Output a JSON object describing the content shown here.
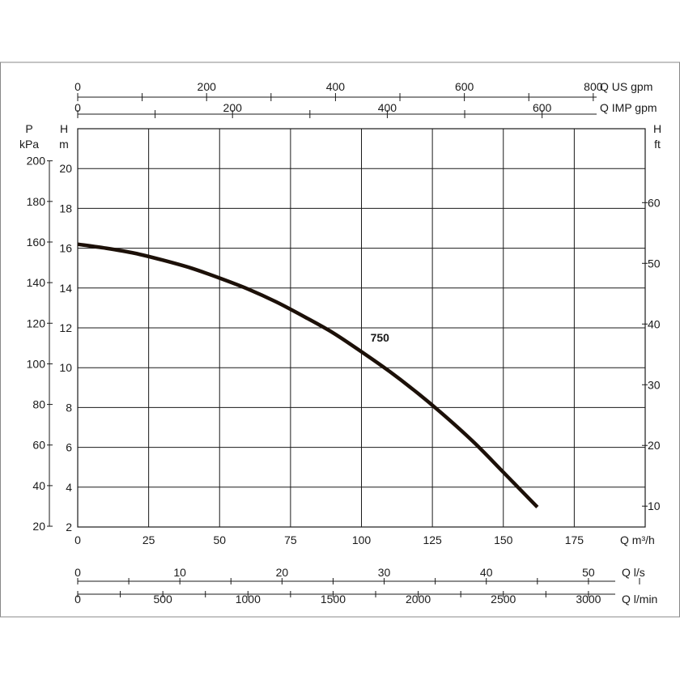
{
  "chart_data": {
    "type": "line",
    "series": [
      {
        "name": "750",
        "x": [
          0,
          10,
          20,
          30,
          40,
          50,
          60,
          70,
          80,
          90,
          100,
          110,
          120,
          130,
          140,
          150,
          162
        ],
        "y": [
          16.2,
          16.0,
          15.75,
          15.4,
          15.0,
          14.5,
          13.95,
          13.3,
          12.55,
          11.75,
          10.8,
          9.8,
          8.7,
          7.5,
          6.2,
          4.75,
          3.0
        ]
      }
    ],
    "axes": {
      "x_flow_m3h": {
        "label": "Q m³/h",
        "ticks": [
          "0",
          "25",
          "50",
          "75",
          "100",
          "125",
          "150",
          "175"
        ],
        "range": [
          0,
          200
        ]
      },
      "x_flow_ls": {
        "label": "Q l/s",
        "ticks": [
          "0",
          "10",
          "20",
          "30",
          "40",
          "50"
        ]
      },
      "x_flow_lmin": {
        "label": "Q l/min",
        "ticks": [
          "0",
          "500",
          "1000",
          "1500",
          "2000",
          "2500",
          "3000"
        ]
      },
      "x_flow_us_gpm": {
        "label": "Q US gpm",
        "ticks": [
          "0",
          "200",
          "400",
          "600",
          "800"
        ]
      },
      "x_flow_imp_gpm": {
        "label": "Q IMP gpm",
        "ticks": [
          "0",
          "200",
          "400",
          "600"
        ]
      },
      "y_head_m": {
        "label_top": "H",
        "label_unit": "m",
        "ticks": [
          "2",
          "4",
          "6",
          "8",
          "10",
          "12",
          "14",
          "16",
          "18",
          "20"
        ],
        "range": [
          2,
          22
        ]
      },
      "y_pressure_kpa": {
        "label_top": "P",
        "label_unit": "kPa",
        "ticks": [
          "20",
          "40",
          "60",
          "80",
          "100",
          "120",
          "140",
          "160",
          "180",
          "200"
        ]
      },
      "y_head_ft": {
        "label_top": "H",
        "label_unit": "ft",
        "ticks": [
          "10",
          "20",
          "30",
          "40",
          "50",
          "60"
        ]
      }
    },
    "grid": true,
    "colors": {
      "curve": "#1c1008",
      "grid": "#1a1a1a",
      "frame": "#888888"
    }
  }
}
